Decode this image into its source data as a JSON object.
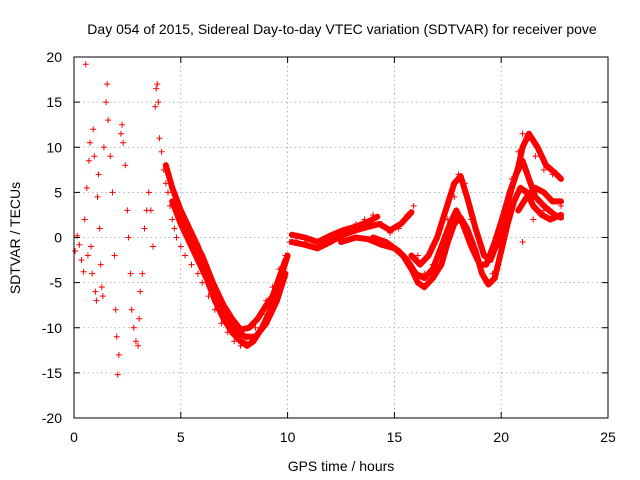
{
  "chart_data": {
    "type": "scatter",
    "title": "Day 054 of 2015, Sidereal Day-to-day VTEC variation (SDTVAR) for receiver pove",
    "xlabel": "GPS time / hours",
    "ylabel": "SDTVAR / TECUs",
    "xlim": [
      0,
      25
    ],
    "ylim": [
      -20,
      20
    ],
    "xticks": [
      0,
      5,
      10,
      15,
      20,
      25
    ],
    "yticks": [
      -20,
      -15,
      -10,
      -5,
      0,
      5,
      10,
      15,
      20
    ],
    "grid": true,
    "marker": "+",
    "series": [
      {
        "name": "SDTVAR",
        "color": "#ff0000",
        "scatter_points": [
          [
            0.05,
            -1.5
          ],
          [
            0.15,
            0.2
          ],
          [
            0.25,
            -0.8
          ],
          [
            0.35,
            -2.5
          ],
          [
            0.45,
            -3.8
          ],
          [
            0.55,
            19.2
          ],
          [
            0.5,
            2.0
          ],
          [
            0.6,
            5.5
          ],
          [
            0.65,
            -2.0
          ],
          [
            0.7,
            8.5
          ],
          [
            0.75,
            10.5
          ],
          [
            0.8,
            -1.0
          ],
          [
            0.85,
            -4.0
          ],
          [
            0.9,
            12.0
          ],
          [
            0.95,
            9.0
          ],
          [
            1.0,
            -6.0
          ],
          [
            1.05,
            -7.0
          ],
          [
            1.1,
            4.5
          ],
          [
            1.15,
            7.0
          ],
          [
            1.2,
            1.0
          ],
          [
            1.25,
            -3.0
          ],
          [
            1.3,
            -5.5
          ],
          [
            1.35,
            -6.5
          ],
          [
            1.4,
            10.0
          ],
          [
            1.5,
            15.0
          ],
          [
            1.55,
            17.0
          ],
          [
            1.6,
            13.0
          ],
          [
            1.7,
            9.0
          ],
          [
            1.8,
            5.0
          ],
          [
            1.9,
            -2.0
          ],
          [
            1.95,
            -8.0
          ],
          [
            2.0,
            -11.0
          ],
          [
            2.05,
            -15.2
          ],
          [
            2.1,
            -13.0
          ],
          [
            2.2,
            11.5
          ],
          [
            2.25,
            12.5
          ],
          [
            2.3,
            10.5
          ],
          [
            2.4,
            8.0
          ],
          [
            2.5,
            3.0
          ],
          [
            2.55,
            0.0
          ],
          [
            2.65,
            -4.0
          ],
          [
            2.7,
            -8.0
          ],
          [
            2.8,
            -10.0
          ],
          [
            2.9,
            -11.5
          ],
          [
            3.0,
            -12.0
          ],
          [
            3.05,
            -9.0
          ],
          [
            3.1,
            -6.0
          ],
          [
            3.2,
            -4.0
          ],
          [
            3.3,
            1.0
          ],
          [
            3.4,
            3.0
          ],
          [
            3.5,
            5.0
          ],
          [
            3.6,
            3.0
          ],
          [
            3.7,
            -1.0
          ],
          [
            3.8,
            14.5
          ],
          [
            3.85,
            16.5
          ],
          [
            3.9,
            17.0
          ],
          [
            3.95,
            15.0
          ],
          [
            4.0,
            11.0
          ],
          [
            4.1,
            9.5
          ],
          [
            4.2,
            7.5
          ],
          [
            4.3,
            6.0
          ],
          [
            4.4,
            5.0
          ],
          [
            4.5,
            3.5
          ],
          [
            4.6,
            2.0
          ],
          [
            4.7,
            1.0
          ],
          [
            4.8,
            0.0
          ],
          [
            5.0,
            -1.0
          ],
          [
            5.2,
            -2.0
          ],
          [
            5.5,
            -3.0
          ],
          [
            5.8,
            -4.0
          ],
          [
            6.0,
            -5.0
          ],
          [
            6.3,
            -6.5
          ],
          [
            6.6,
            -8.0
          ],
          [
            6.9,
            -9.5
          ],
          [
            7.2,
            -10.5
          ],
          [
            7.5,
            -11.5
          ],
          [
            7.8,
            -12.0
          ],
          [
            8.0,
            -11.5
          ],
          [
            8.2,
            -11.0
          ],
          [
            8.5,
            -10.0
          ],
          [
            8.8,
            -8.5
          ],
          [
            9.0,
            -7.0
          ],
          [
            9.3,
            -5.5
          ],
          [
            9.6,
            -3.5
          ],
          [
            9.9,
            -2.0
          ],
          [
            10.1,
            -0.5
          ],
          [
            10.4,
            0.0
          ],
          [
            10.8,
            -0.5
          ],
          [
            11.2,
            -1.0
          ],
          [
            11.6,
            -0.5
          ],
          [
            12.0,
            0.0
          ],
          [
            12.4,
            0.5
          ],
          [
            12.8,
            1.0
          ],
          [
            13.2,
            1.5
          ],
          [
            13.6,
            2.0
          ],
          [
            14.0,
            2.5
          ],
          [
            14.4,
            1.5
          ],
          [
            14.8,
            0.5
          ],
          [
            15.2,
            1.0
          ],
          [
            15.6,
            2.5
          ],
          [
            15.9,
            3.5
          ],
          [
            16.1,
            -2.0
          ],
          [
            16.4,
            -4.0
          ],
          [
            16.8,
            -3.0
          ],
          [
            17.2,
            -1.0
          ],
          [
            17.5,
            2.0
          ],
          [
            17.8,
            4.5
          ],
          [
            18.0,
            7.0
          ],
          [
            18.3,
            6.0
          ],
          [
            18.6,
            2.0
          ],
          [
            19.0,
            -3.0
          ],
          [
            19.3,
            -5.0
          ],
          [
            19.6,
            -4.0
          ],
          [
            19.9,
            -1.0
          ],
          [
            20.2,
            3.0
          ],
          [
            20.5,
            6.5
          ],
          [
            20.8,
            9.5
          ],
          [
            21.0,
            11.5
          ],
          [
            21.3,
            11.0
          ],
          [
            21.6,
            9.0
          ],
          [
            22.0,
            7.5
          ],
          [
            22.4,
            7.0
          ],
          [
            22.8,
            6.5
          ],
          [
            21.0,
            -0.5
          ],
          [
            21.5,
            2.0
          ],
          [
            22.0,
            3.0
          ],
          [
            22.5,
            2.5
          ],
          [
            22.8,
            3.5
          ]
        ],
        "line_traces": [
          [
            [
              4.3,
              8.0
            ],
            [
              4.6,
              5.5
            ],
            [
              5.0,
              3.0
            ],
            [
              5.4,
              1.0
            ],
            [
              5.8,
              -1.0
            ],
            [
              6.2,
              -3.5
            ],
            [
              6.6,
              -5.5
            ],
            [
              7.0,
              -7.5
            ],
            [
              7.4,
              -9.0
            ],
            [
              7.8,
              -10.2
            ],
            [
              8.2,
              -10.0
            ],
            [
              8.6,
              -9.0
            ],
            [
              9.0,
              -7.5
            ],
            [
              9.3,
              -6.5
            ],
            [
              9.6,
              -4.5
            ],
            [
              9.9,
              -2.5
            ]
          ],
          [
            [
              4.6,
              4.0
            ],
            [
              5.0,
              1.5
            ],
            [
              5.4,
              -0.5
            ],
            [
              5.8,
              -2.5
            ],
            [
              6.2,
              -4.5
            ],
            [
              6.6,
              -7.0
            ],
            [
              7.0,
              -9.0
            ],
            [
              7.4,
              -10.5
            ],
            [
              7.8,
              -11.5
            ],
            [
              8.1,
              -12.0
            ],
            [
              8.4,
              -11.5
            ],
            [
              8.8,
              -10.0
            ],
            [
              9.2,
              -8.0
            ],
            [
              9.5,
              -6.0
            ],
            [
              9.8,
              -3.5
            ],
            [
              10.0,
              -2.0
            ]
          ],
          [
            [
              5.0,
              2.0
            ],
            [
              5.5,
              0.0
            ],
            [
              6.0,
              -2.0
            ],
            [
              6.5,
              -5.0
            ],
            [
              7.0,
              -8.0
            ],
            [
              7.5,
              -10.0
            ],
            [
              8.0,
              -11.0
            ],
            [
              8.5,
              -11.0
            ],
            [
              9.0,
              -9.5
            ],
            [
              9.5,
              -7.0
            ],
            [
              9.9,
              -4.0
            ]
          ],
          [
            [
              10.2,
              -0.5
            ],
            [
              10.8,
              -0.8
            ],
            [
              11.4,
              -1.2
            ],
            [
              12.0,
              -0.5
            ],
            [
              12.6,
              0.3
            ],
            [
              13.2,
              0.8
            ],
            [
              13.8,
              1.2
            ],
            [
              14.3,
              1.5
            ],
            [
              14.8,
              0.8
            ],
            [
              15.3,
              1.5
            ],
            [
              15.8,
              2.8
            ]
          ],
          [
            [
              10.2,
              0.3
            ],
            [
              10.8,
              0.0
            ],
            [
              11.4,
              -0.5
            ],
            [
              12.0,
              0.2
            ],
            [
              12.6,
              0.8
            ],
            [
              13.2,
              1.2
            ],
            [
              13.8,
              1.8
            ],
            [
              14.2,
              2.3
            ]
          ],
          [
            [
              12.5,
              -0.5
            ],
            [
              13.2,
              0.0
            ],
            [
              13.8,
              -0.2
            ],
            [
              14.4,
              -0.8
            ],
            [
              15.0,
              -1.2
            ],
            [
              15.4,
              -2.0
            ],
            [
              15.8,
              -3.5
            ],
            [
              16.1,
              -5.0
            ],
            [
              16.4,
              -5.5
            ],
            [
              16.8,
              -4.5
            ],
            [
              17.2,
              -3.0
            ],
            [
              17.5,
              -0.5
            ],
            [
              17.8,
              1.5
            ],
            [
              18.1,
              2.2
            ],
            [
              18.4,
              1.0
            ],
            [
              18.8,
              -1.5
            ],
            [
              19.1,
              -4.0
            ],
            [
              19.4,
              -5.2
            ],
            [
              19.7,
              -4.5
            ],
            [
              20.0,
              -1.5
            ],
            [
              20.3,
              1.5
            ],
            [
              20.6,
              4.0
            ],
            [
              20.9,
              5.5
            ],
            [
              21.2,
              5.0
            ],
            [
              21.5,
              3.5
            ],
            [
              21.9,
              2.5
            ],
            [
              22.3,
              2.0
            ],
            [
              22.8,
              2.5
            ]
          ],
          [
            [
              14.0,
              0.0
            ],
            [
              14.6,
              -0.5
            ],
            [
              15.2,
              -1.5
            ],
            [
              15.6,
              -2.5
            ],
            [
              16.0,
              -4.0
            ],
            [
              16.4,
              -4.5
            ],
            [
              16.8,
              -3.5
            ],
            [
              17.2,
              -1.0
            ],
            [
              17.6,
              1.5
            ],
            [
              17.9,
              3.0
            ],
            [
              18.2,
              1.5
            ],
            [
              18.6,
              -1.0
            ],
            [
              19.0,
              -3.0
            ],
            [
              19.3,
              -3.0
            ],
            [
              19.7,
              -0.5
            ],
            [
              20.1,
              2.5
            ],
            [
              20.4,
              5.0
            ],
            [
              20.7,
              7.0
            ],
            [
              21.0,
              8.5
            ],
            [
              21.3,
              6.5
            ],
            [
              21.6,
              4.5
            ],
            [
              22.0,
              3.5
            ],
            [
              22.5,
              2.5
            ],
            [
              22.8,
              2.2
            ]
          ],
          [
            [
              15.8,
              -2.0
            ],
            [
              16.2,
              -3.0
            ],
            [
              16.6,
              -2.0
            ],
            [
              17.0,
              0.0
            ],
            [
              17.4,
              3.0
            ],
            [
              17.8,
              6.0
            ],
            [
              18.1,
              6.8
            ],
            [
              18.4,
              4.5
            ],
            [
              18.8,
              1.0
            ],
            [
              19.2,
              -2.0
            ],
            [
              19.5,
              -2.5
            ],
            [
              19.9,
              0.0
            ],
            [
              20.2,
              3.0
            ],
            [
              20.5,
              5.5
            ],
            [
              20.8,
              7.8
            ],
            [
              21.0,
              10.0
            ],
            [
              21.3,
              11.5
            ],
            [
              21.7,
              10.0
            ],
            [
              22.1,
              8.0
            ],
            [
              22.5,
              7.2
            ],
            [
              22.8,
              6.5
            ]
          ],
          [
            [
              20.8,
              3.0
            ],
            [
              21.2,
              4.5
            ],
            [
              21.6,
              5.5
            ],
            [
              22.0,
              5.0
            ],
            [
              22.4,
              4.0
            ],
            [
              22.8,
              4.0
            ]
          ]
        ]
      }
    ]
  }
}
